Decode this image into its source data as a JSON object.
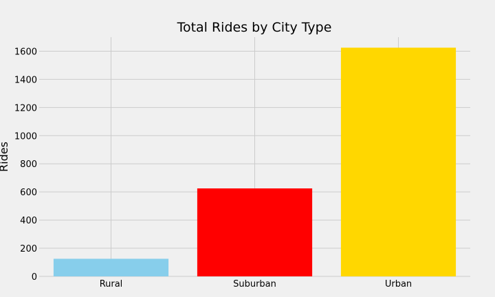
{
  "chart_data": {
    "type": "bar",
    "title": "Total Rides by City Type",
    "xlabel": "",
    "ylabel": "Rides",
    "categories": [
      "Rural",
      "Suburban",
      "Urban"
    ],
    "values": [
      125,
      625,
      1625
    ],
    "colors": [
      "#87ceeb",
      "#ff0000",
      "#ffd700"
    ],
    "ylim": [
      0,
      1700
    ],
    "yticks": [
      0,
      200,
      400,
      600,
      800,
      1000,
      1200,
      1400,
      1600
    ],
    "grid": true,
    "background": "#f0f0f0",
    "grid_color": "#cbcbcb"
  }
}
